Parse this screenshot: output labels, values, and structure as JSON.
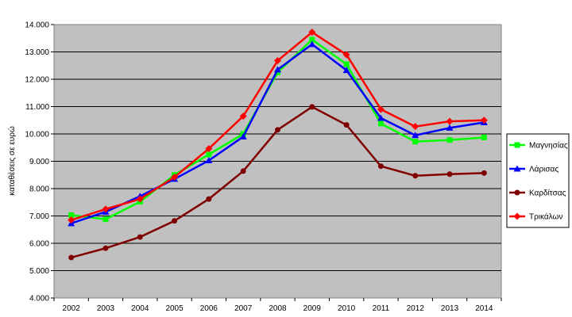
{
  "chart_data": {
    "type": "line",
    "title": "",
    "xlabel": "",
    "ylabel": "καταθέσεις σε ευρώ",
    "categories": [
      "2002",
      "2003",
      "2004",
      "2005",
      "2006",
      "2007",
      "2008",
      "2009",
      "2010",
      "2011",
      "2012",
      "2013",
      "2014"
    ],
    "ylim": [
      4000,
      14000
    ],
    "yticks": [
      4000,
      5000,
      6000,
      7000,
      8000,
      9000,
      10000,
      11000,
      12000,
      13000,
      14000
    ],
    "ytick_labels": [
      "4.000",
      "5.000",
      "6.000",
      "7.000",
      "8.000",
      "9.000",
      "10.000",
      "11.000",
      "12.000",
      "13.000",
      "14.000"
    ],
    "grid": true,
    "plot_background": "#c0c0c0",
    "legend_position": "right",
    "series": [
      {
        "name": "Μαγνησίας",
        "color": "#00ff00",
        "marker": "square",
        "values": [
          7030,
          6880,
          7520,
          8500,
          9250,
          10000,
          12250,
          13450,
          12550,
          10380,
          9720,
          9780,
          9870
        ]
      },
      {
        "name": "Λάρισας",
        "color": "#0000ff",
        "marker": "triangle",
        "values": [
          6730,
          7150,
          7720,
          8350,
          9030,
          9900,
          12350,
          13280,
          12330,
          10580,
          9950,
          10220,
          10420
        ]
      },
      {
        "name": "Καρδίτσας",
        "color": "#800000",
        "marker": "circle",
        "values": [
          5480,
          5820,
          6230,
          6820,
          7620,
          8640,
          10150,
          10990,
          10330,
          8820,
          8470,
          8530,
          8570
        ]
      },
      {
        "name": "Τρικάλων",
        "color": "#ff0000",
        "marker": "diamond",
        "values": [
          6850,
          7250,
          7620,
          8420,
          9460,
          10650,
          12680,
          13720,
          12900,
          10900,
          10270,
          10460,
          10500
        ]
      }
    ]
  }
}
